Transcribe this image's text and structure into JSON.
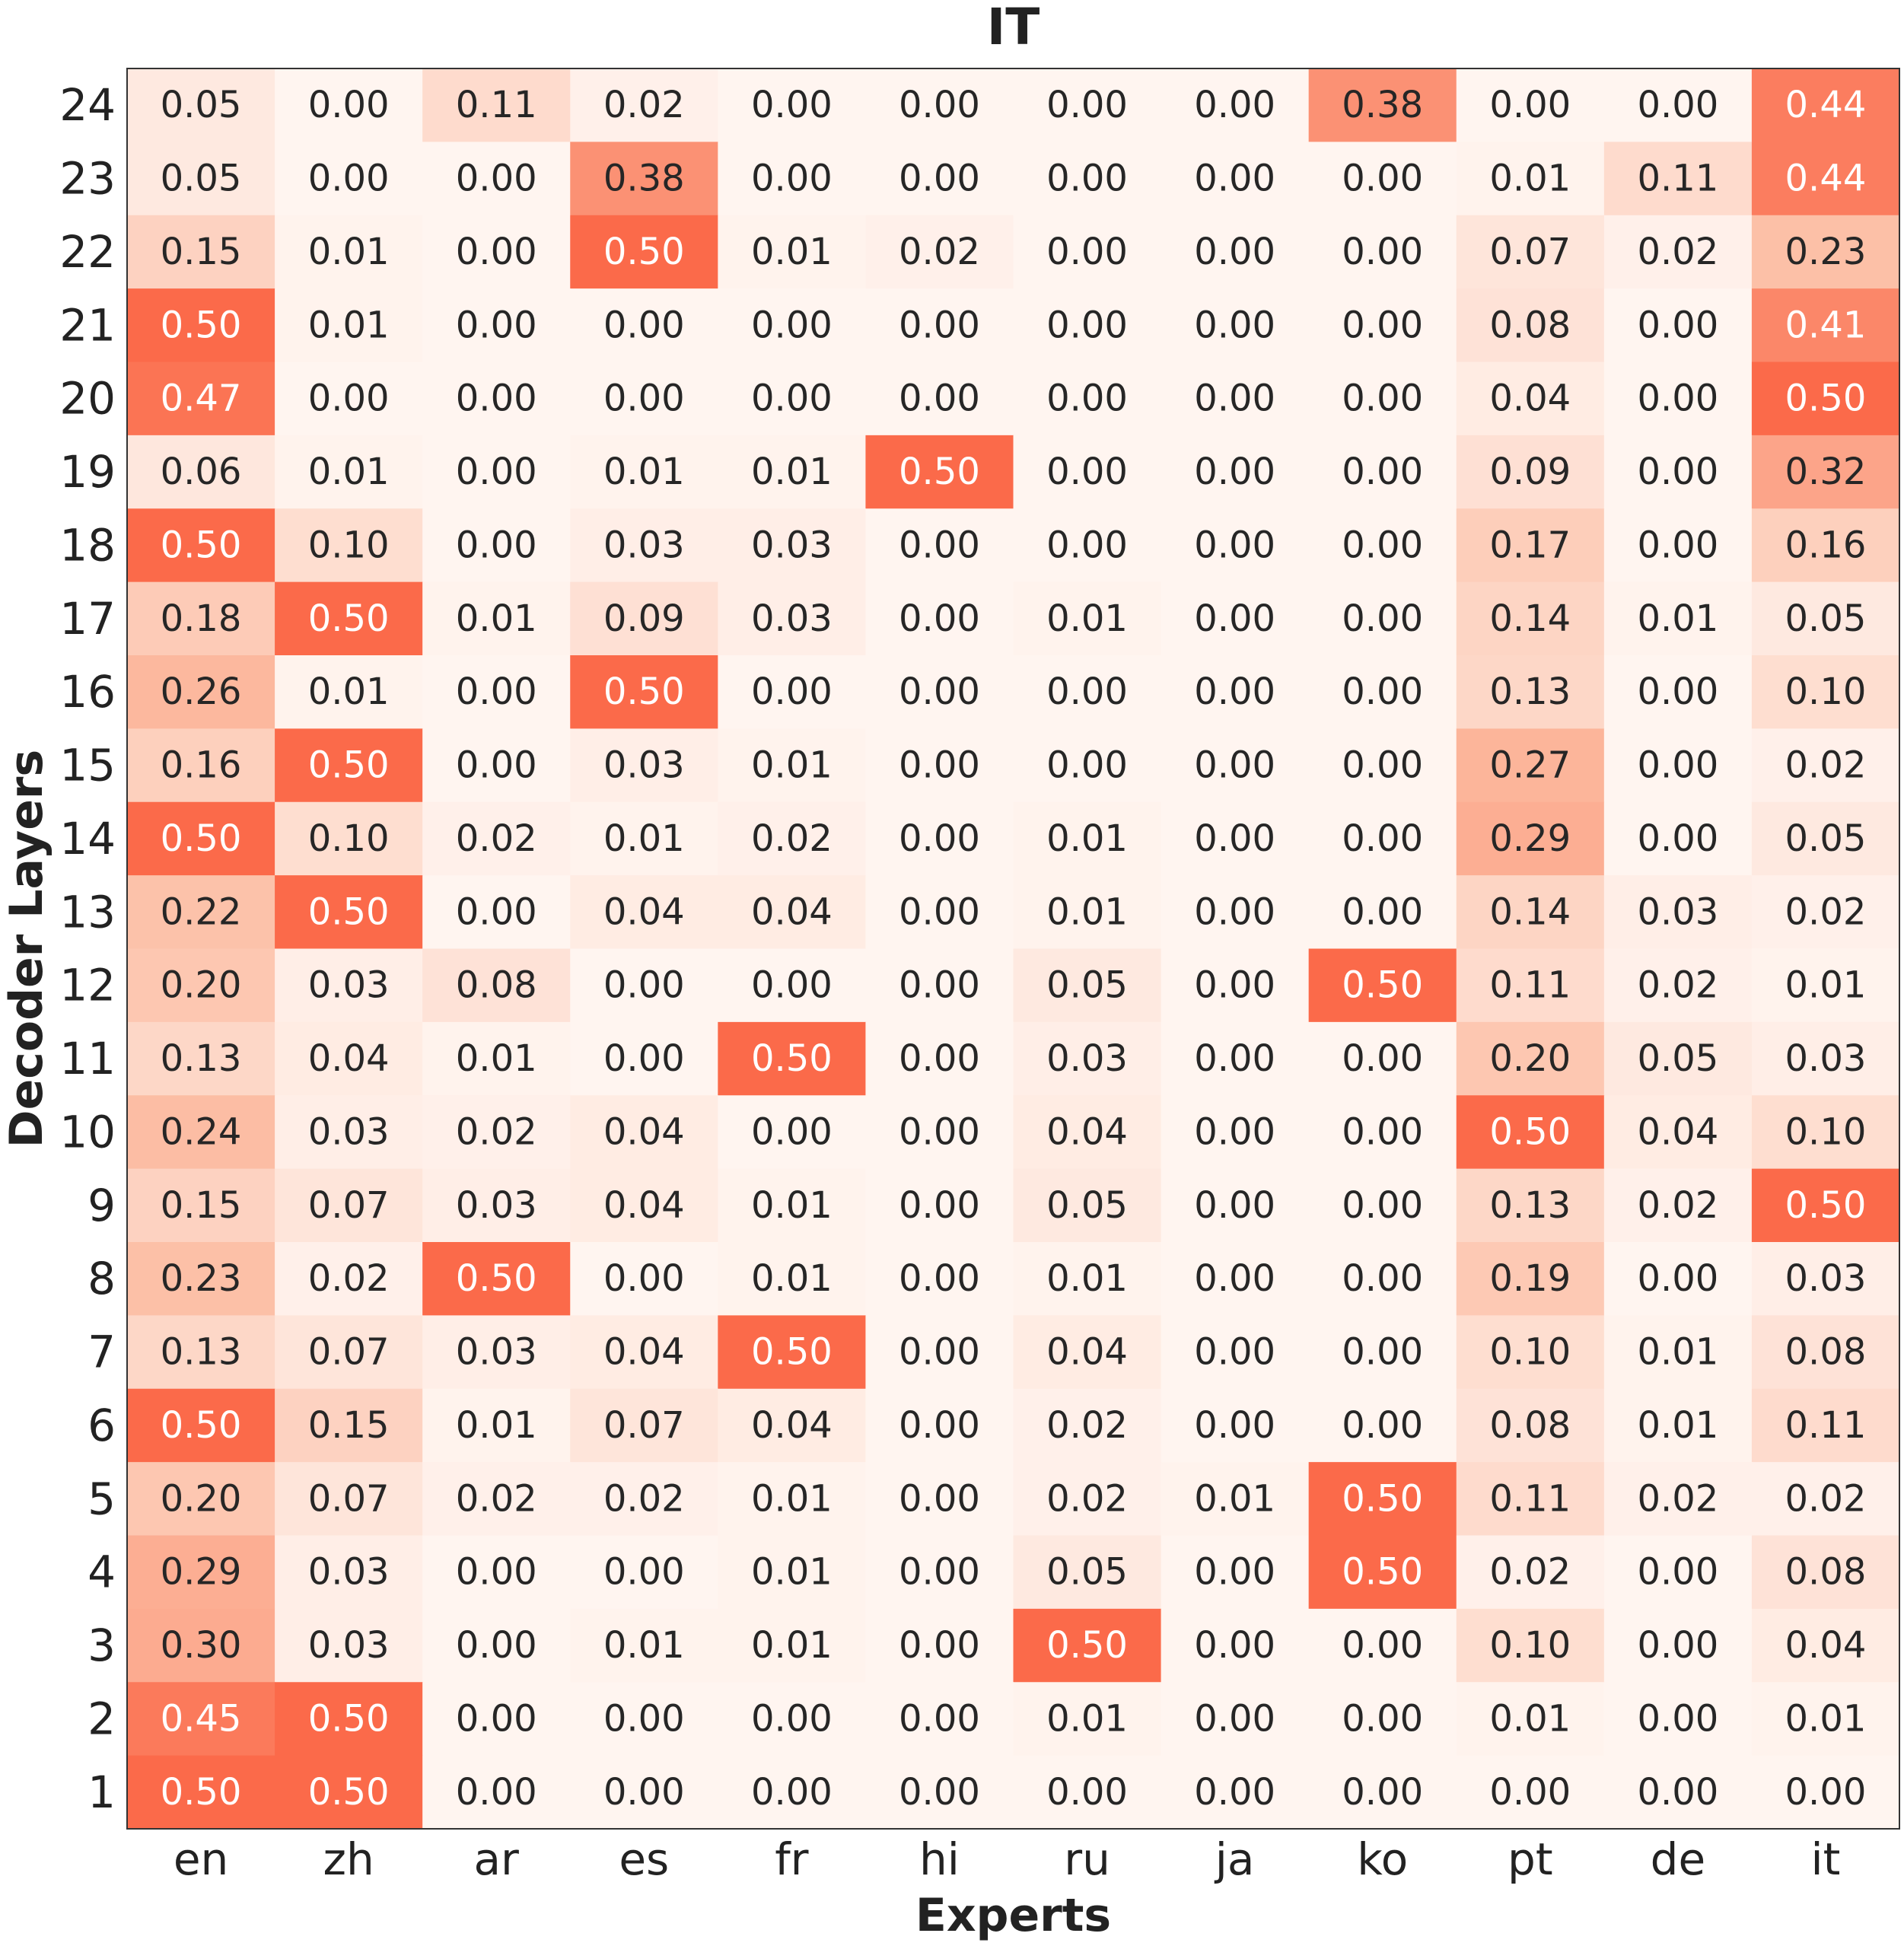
{
  "chart_data": {
    "type": "heatmap",
    "title": "IT",
    "xlabel": "Experts",
    "ylabel": "Decoder Layers",
    "x_categories": [
      "en",
      "zh",
      "ar",
      "es",
      "fr",
      "hi",
      "ru",
      "ja",
      "ko",
      "pt",
      "de",
      "it"
    ],
    "y_categories": [
      "24",
      "23",
      "22",
      "21",
      "20",
      "19",
      "18",
      "17",
      "16",
      "15",
      "14",
      "13",
      "12",
      "11",
      "10",
      "9",
      "8",
      "7",
      "6",
      "5",
      "4",
      "3",
      "2",
      "1"
    ],
    "values": [
      [
        0.05,
        0.0,
        0.11,
        0.02,
        0.0,
        0.0,
        0.0,
        0.0,
        0.38,
        0.0,
        0.0,
        0.44
      ],
      [
        0.05,
        0.0,
        0.0,
        0.38,
        0.0,
        0.0,
        0.0,
        0.0,
        0.0,
        0.01,
        0.11,
        0.44
      ],
      [
        0.15,
        0.01,
        0.0,
        0.5,
        0.01,
        0.02,
        0.0,
        0.0,
        0.0,
        0.07,
        0.02,
        0.23
      ],
      [
        0.5,
        0.01,
        0.0,
        0.0,
        0.0,
        0.0,
        0.0,
        0.0,
        0.0,
        0.08,
        0.0,
        0.41
      ],
      [
        0.47,
        0.0,
        0.0,
        0.0,
        0.0,
        0.0,
        0.0,
        0.0,
        0.0,
        0.04,
        0.0,
        0.5
      ],
      [
        0.06,
        0.01,
        0.0,
        0.01,
        0.01,
        0.5,
        0.0,
        0.0,
        0.0,
        0.09,
        0.0,
        0.32
      ],
      [
        0.5,
        0.1,
        0.0,
        0.03,
        0.03,
        0.0,
        0.0,
        0.0,
        0.0,
        0.17,
        0.0,
        0.16
      ],
      [
        0.18,
        0.5,
        0.01,
        0.09,
        0.03,
        0.0,
        0.01,
        0.0,
        0.0,
        0.14,
        0.01,
        0.05
      ],
      [
        0.26,
        0.01,
        0.0,
        0.5,
        0.0,
        0.0,
        0.0,
        0.0,
        0.0,
        0.13,
        0.0,
        0.1
      ],
      [
        0.16,
        0.5,
        0.0,
        0.03,
        0.01,
        0.0,
        0.0,
        0.0,
        0.0,
        0.27,
        0.0,
        0.02
      ],
      [
        0.5,
        0.1,
        0.02,
        0.01,
        0.02,
        0.0,
        0.01,
        0.0,
        0.0,
        0.29,
        0.0,
        0.05
      ],
      [
        0.22,
        0.5,
        0.0,
        0.04,
        0.04,
        0.0,
        0.01,
        0.0,
        0.0,
        0.14,
        0.03,
        0.02
      ],
      [
        0.2,
        0.03,
        0.08,
        0.0,
        0.0,
        0.0,
        0.05,
        0.0,
        0.5,
        0.11,
        0.02,
        0.01
      ],
      [
        0.13,
        0.04,
        0.01,
        0.0,
        0.5,
        0.0,
        0.03,
        0.0,
        0.0,
        0.2,
        0.05,
        0.03
      ],
      [
        0.24,
        0.03,
        0.02,
        0.04,
        0.0,
        0.0,
        0.04,
        0.0,
        0.0,
        0.5,
        0.04,
        0.1
      ],
      [
        0.15,
        0.07,
        0.03,
        0.04,
        0.01,
        0.0,
        0.05,
        0.0,
        0.0,
        0.13,
        0.02,
        0.5
      ],
      [
        0.23,
        0.02,
        0.5,
        0.0,
        0.01,
        0.0,
        0.01,
        0.0,
        0.0,
        0.19,
        0.0,
        0.03
      ],
      [
        0.13,
        0.07,
        0.03,
        0.04,
        0.5,
        0.0,
        0.04,
        0.0,
        0.0,
        0.1,
        0.01,
        0.08
      ],
      [
        0.5,
        0.15,
        0.01,
        0.07,
        0.04,
        0.0,
        0.02,
        0.0,
        0.0,
        0.08,
        0.01,
        0.11
      ],
      [
        0.2,
        0.07,
        0.02,
        0.02,
        0.01,
        0.0,
        0.02,
        0.01,
        0.5,
        0.11,
        0.02,
        0.02
      ],
      [
        0.29,
        0.03,
        0.0,
        0.0,
        0.01,
        0.0,
        0.05,
        0.0,
        0.5,
        0.02,
        0.0,
        0.08
      ],
      [
        0.3,
        0.03,
        0.0,
        0.01,
        0.01,
        0.0,
        0.5,
        0.0,
        0.0,
        0.1,
        0.0,
        0.04
      ],
      [
        0.45,
        0.5,
        0.0,
        0.0,
        0.0,
        0.0,
        0.01,
        0.0,
        0.0,
        0.01,
        0.0,
        0.01
      ],
      [
        0.5,
        0.5,
        0.0,
        0.0,
        0.0,
        0.0,
        0.0,
        0.0,
        0.0,
        0.0,
        0.0,
        0.0
      ]
    ],
    "value_range": [
      0,
      1
    ],
    "colormap": [
      "#fff5f0",
      "#fcbba1",
      "#fb6a4a",
      "#cb181d",
      "#67000d"
    ],
    "value_format": "2 decimals"
  }
}
